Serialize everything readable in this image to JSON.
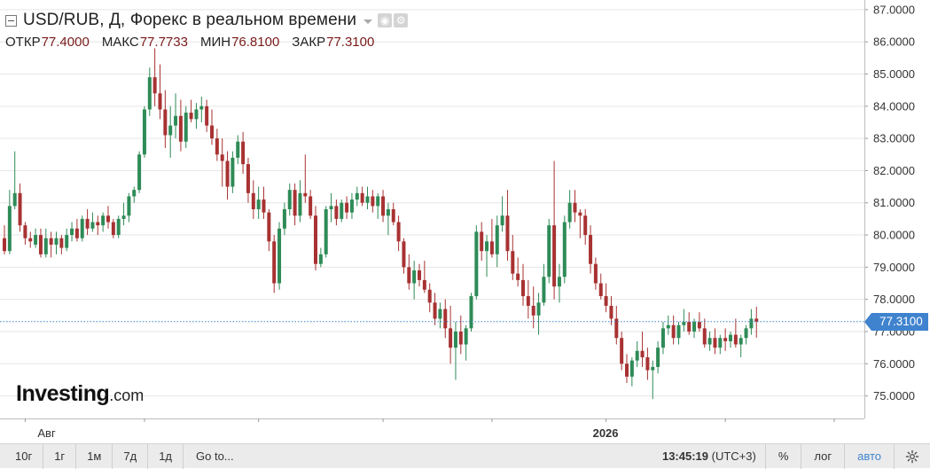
{
  "header": {
    "title": "USD/RUB, Д, Форекс в реальном времени",
    "ohlc": [
      {
        "label": "ОТКР",
        "value": "77.4000"
      },
      {
        "label": "МАКС",
        "value": "77.7733"
      },
      {
        "label": "МИН",
        "value": "76.8100"
      },
      {
        "label": "ЗАКР",
        "value": "77.3100"
      }
    ]
  },
  "logo": {
    "main": "Investing",
    "suffix": ".com"
  },
  "current_price": "77.3100",
  "toolbar": {
    "ranges": [
      "10г",
      "1г",
      "1м",
      "7д",
      "1д"
    ],
    "goto": "Go to...",
    "time": "13:45:19",
    "timezone": "(UTC+3)",
    "percent": "%",
    "log": "лог",
    "auto": "авто"
  },
  "colors": {
    "up": "#2e8b57",
    "down": "#a83232",
    "grid": "#e6e6e6",
    "price_line": "#3f83cf"
  },
  "chart_data": {
    "type": "candlestick",
    "title": "USD/RUB, Д, Форекс в реальном времени",
    "ylim": [
      74.3,
      87.3
    ],
    "y_ticks": [
      "87.0000",
      "86.0000",
      "85.0000",
      "84.0000",
      "83.0000",
      "82.0000",
      "81.0000",
      "80.0000",
      "79.0000",
      "78.0000",
      "77.0000",
      "76.0000",
      "75.0000"
    ],
    "x_ticks": [
      {
        "label": "Авг",
        "index": 4
      },
      {
        "label": "",
        "index": 27
      },
      {
        "label": "",
        "index": 49
      },
      {
        "label": "",
        "index": 73
      },
      {
        "label": "",
        "index": 94
      },
      {
        "label": "2026",
        "index": 116
      },
      {
        "label": "",
        "index": 139
      },
      {
        "label": "",
        "index": 160
      }
    ],
    "last_price": 77.31,
    "ohlc": [
      [
        79.9,
        80.3,
        79.4,
        79.5
      ],
      [
        79.5,
        81.4,
        79.4,
        80.9
      ],
      [
        80.9,
        82.6,
        80.8,
        81.3
      ],
      [
        81.3,
        81.6,
        80.1,
        80.3
      ],
      [
        80.3,
        80.4,
        79.7,
        79.9
      ],
      [
        79.9,
        80.1,
        79.6,
        79.8
      ],
      [
        79.7,
        80.2,
        79.6,
        80.0
      ],
      [
        80.0,
        80.2,
        79.3,
        79.4
      ],
      [
        79.4,
        80.2,
        79.3,
        79.9
      ],
      [
        79.9,
        80.1,
        79.3,
        79.7
      ],
      [
        79.7,
        80.1,
        79.4,
        79.9
      ],
      [
        79.9,
        80.0,
        79.4,
        79.6
      ],
      [
        79.6,
        80.2,
        79.5,
        80.0
      ],
      [
        80.0,
        80.4,
        79.8,
        80.2
      ],
      [
        80.2,
        80.5,
        79.8,
        79.9
      ],
      [
        79.9,
        80.6,
        79.8,
        80.5
      ],
      [
        80.5,
        80.8,
        80.0,
        80.2
      ],
      [
        80.2,
        80.7,
        80.1,
        80.4
      ],
      [
        80.4,
        80.6,
        80.0,
        80.3
      ],
      [
        80.3,
        80.7,
        80.1,
        80.6
      ],
      [
        80.6,
        80.9,
        80.2,
        80.4
      ],
      [
        80.4,
        80.5,
        79.9,
        80.0
      ],
      [
        80.0,
        80.6,
        79.9,
        80.5
      ],
      [
        80.5,
        81.0,
        80.3,
        80.6
      ],
      [
        80.6,
        81.3,
        80.4,
        81.2
      ],
      [
        81.2,
        81.5,
        81.0,
        81.4
      ],
      [
        81.4,
        82.6,
        81.3,
        82.5
      ],
      [
        82.5,
        84.0,
        82.4,
        83.9
      ],
      [
        83.9,
        85.2,
        83.7,
        84.9
      ],
      [
        84.9,
        85.8,
        84.0,
        84.4
      ],
      [
        84.4,
        85.3,
        83.6,
        83.9
      ],
      [
        83.9,
        84.5,
        82.7,
        83.1
      ],
      [
        83.1,
        84.0,
        82.4,
        83.4
      ],
      [
        83.4,
        84.4,
        83.0,
        83.7
      ],
      [
        83.7,
        84.2,
        82.6,
        82.9
      ],
      [
        82.9,
        84.0,
        82.7,
        83.8
      ],
      [
        83.8,
        84.2,
        83.5,
        83.6
      ],
      [
        83.6,
        84.1,
        83.3,
        83.9
      ],
      [
        83.9,
        84.3,
        83.5,
        84.0
      ],
      [
        84.0,
        84.2,
        83.2,
        83.4
      ],
      [
        83.4,
        83.9,
        82.8,
        83.0
      ],
      [
        83.0,
        83.3,
        82.3,
        82.5
      ],
      [
        82.5,
        83.0,
        81.5,
        82.3
      ],
      [
        82.3,
        82.6,
        81.1,
        81.5
      ],
      [
        81.5,
        82.6,
        81.3,
        82.4
      ],
      [
        82.4,
        83.1,
        82.2,
        82.9
      ],
      [
        82.9,
        83.2,
        81.9,
        82.2
      ],
      [
        82.2,
        82.4,
        81.0,
        81.3
      ],
      [
        81.3,
        81.7,
        80.5,
        80.8
      ],
      [
        80.8,
        81.5,
        80.5,
        81.1
      ],
      [
        81.1,
        81.5,
        80.5,
        80.7
      ],
      [
        80.7,
        80.8,
        79.5,
        79.8
      ],
      [
        79.8,
        80.0,
        78.2,
        78.5
      ],
      [
        78.5,
        80.4,
        78.3,
        80.2
      ],
      [
        80.2,
        81.0,
        80.0,
        80.8
      ],
      [
        80.8,
        81.6,
        80.6,
        81.4
      ],
      [
        81.4,
        81.6,
        80.3,
        80.6
      ],
      [
        80.6,
        81.7,
        80.4,
        81.3
      ],
      [
        81.3,
        82.5,
        81.0,
        81.2
      ],
      [
        81.2,
        81.4,
        80.5,
        80.6
      ],
      [
        80.6,
        80.9,
        78.9,
        79.1
      ],
      [
        79.1,
        79.6,
        79.0,
        79.4
      ],
      [
        79.4,
        80.9,
        79.3,
        80.8
      ],
      [
        80.8,
        81.3,
        80.4,
        80.9
      ],
      [
        80.9,
        81.1,
        80.3,
        80.5
      ],
      [
        80.5,
        81.1,
        80.4,
        81.0
      ],
      [
        81.0,
        81.2,
        80.5,
        80.7
      ],
      [
        80.7,
        81.3,
        80.5,
        81.1
      ],
      [
        81.1,
        81.5,
        80.9,
        81.3
      ],
      [
        81.3,
        81.5,
        80.9,
        81.0
      ],
      [
        81.0,
        81.5,
        80.8,
        81.2
      ],
      [
        81.2,
        81.4,
        80.7,
        80.9
      ],
      [
        80.9,
        81.3,
        80.5,
        81.2
      ],
      [
        81.2,
        81.4,
        80.4,
        80.6
      ],
      [
        80.6,
        81.0,
        80.0,
        80.8
      ],
      [
        80.8,
        81.0,
        80.3,
        80.4
      ],
      [
        80.4,
        80.6,
        79.5,
        79.8
      ],
      [
        79.8,
        79.9,
        78.8,
        79.0
      ],
      [
        79.0,
        79.4,
        78.3,
        78.5
      ],
      [
        78.5,
        79.2,
        78.0,
        78.9
      ],
      [
        78.9,
        79.1,
        78.4,
        78.6
      ],
      [
        78.6,
        79.2,
        78.2,
        78.3
      ],
      [
        78.3,
        78.5,
        77.6,
        77.9
      ],
      [
        77.9,
        78.2,
        77.2,
        77.4
      ],
      [
        77.4,
        77.9,
        77.1,
        77.7
      ],
      [
        77.7,
        78.0,
        76.8,
        77.1
      ],
      [
        77.1,
        77.8,
        76.0,
        76.5
      ],
      [
        76.5,
        77.3,
        75.5,
        77.0
      ],
      [
        77.0,
        77.5,
        76.3,
        76.6
      ],
      [
        76.6,
        77.2,
        76.1,
        77.1
      ],
      [
        77.1,
        78.2,
        77.0,
        78.1
      ],
      [
        78.1,
        80.3,
        78.0,
        80.1
      ],
      [
        80.1,
        80.4,
        79.2,
        79.5
      ],
      [
        79.5,
        80.0,
        78.7,
        79.8
      ],
      [
        79.8,
        80.5,
        79.3,
        79.4
      ],
      [
        79.4,
        80.6,
        79.0,
        80.3
      ],
      [
        80.3,
        81.2,
        80.1,
        80.6
      ],
      [
        80.6,
        81.4,
        79.2,
        79.5
      ],
      [
        79.5,
        80.0,
        78.6,
        78.8
      ],
      [
        78.8,
        79.3,
        78.4,
        78.6
      ],
      [
        78.6,
        79.1,
        77.8,
        78.1
      ],
      [
        78.1,
        78.6,
        77.4,
        77.8
      ],
      [
        77.8,
        78.4,
        77.1,
        77.5
      ],
      [
        77.5,
        78.2,
        76.9,
        77.9
      ],
      [
        77.9,
        79.1,
        77.8,
        78.7
      ],
      [
        78.7,
        80.5,
        78.5,
        80.3
      ],
      [
        80.3,
        82.3,
        78.0,
        78.4
      ],
      [
        78.4,
        79.1,
        77.9,
        78.7
      ],
      [
        78.7,
        80.6,
        78.5,
        80.4
      ],
      [
        80.4,
        81.4,
        80.2,
        81.0
      ],
      [
        81.0,
        81.4,
        80.4,
        80.7
      ],
      [
        80.7,
        80.8,
        79.9,
        80.6
      ],
      [
        80.6,
        80.8,
        79.7,
        80.0
      ],
      [
        80.0,
        80.3,
        78.8,
        79.1
      ],
      [
        79.1,
        79.3,
        78.3,
        78.5
      ],
      [
        78.5,
        78.8,
        78.0,
        78.1
      ],
      [
        78.1,
        78.5,
        77.6,
        77.8
      ],
      [
        77.8,
        78.1,
        77.2,
        77.4
      ],
      [
        77.4,
        77.8,
        76.6,
        76.8
      ],
      [
        76.8,
        77.0,
        75.8,
        76.0
      ],
      [
        76.0,
        76.3,
        75.4,
        75.6
      ],
      [
        75.6,
        76.2,
        75.3,
        76.1
      ],
      [
        76.1,
        76.7,
        75.9,
        76.4
      ],
      [
        76.4,
        77.0,
        75.9,
        76.2
      ],
      [
        76.2,
        76.5,
        75.5,
        75.8
      ],
      [
        75.8,
        76.1,
        74.9,
        75.9
      ],
      [
        75.9,
        76.7,
        75.7,
        76.5
      ],
      [
        76.5,
        77.3,
        76.3,
        77.1
      ],
      [
        77.1,
        77.5,
        76.9,
        77.2
      ],
      [
        77.2,
        77.5,
        76.6,
        76.8
      ],
      [
        76.8,
        77.3,
        76.6,
        77.2
      ],
      [
        77.2,
        77.7,
        77.0,
        77.3
      ],
      [
        77.3,
        77.6,
        76.9,
        77.0
      ],
      [
        77.0,
        77.4,
        76.8,
        77.3
      ],
      [
        77.3,
        77.6,
        77.0,
        77.1
      ],
      [
        77.1,
        77.4,
        76.5,
        76.6
      ],
      [
        76.6,
        77.0,
        76.4,
        76.8
      ],
      [
        76.8,
        77.1,
        76.3,
        76.5
      ],
      [
        76.5,
        76.9,
        76.3,
        76.8
      ],
      [
        76.8,
        77.1,
        76.4,
        76.7
      ],
      [
        76.7,
        77.0,
        76.5,
        76.9
      ],
      [
        76.9,
        77.4,
        76.5,
        76.6
      ],
      [
        76.6,
        76.9,
        76.2,
        76.8
      ],
      [
        76.8,
        77.2,
        76.6,
        77.1
      ],
      [
        77.1,
        77.7,
        76.9,
        77.4
      ],
      [
        77.4,
        77.77,
        76.81,
        77.31
      ]
    ]
  }
}
